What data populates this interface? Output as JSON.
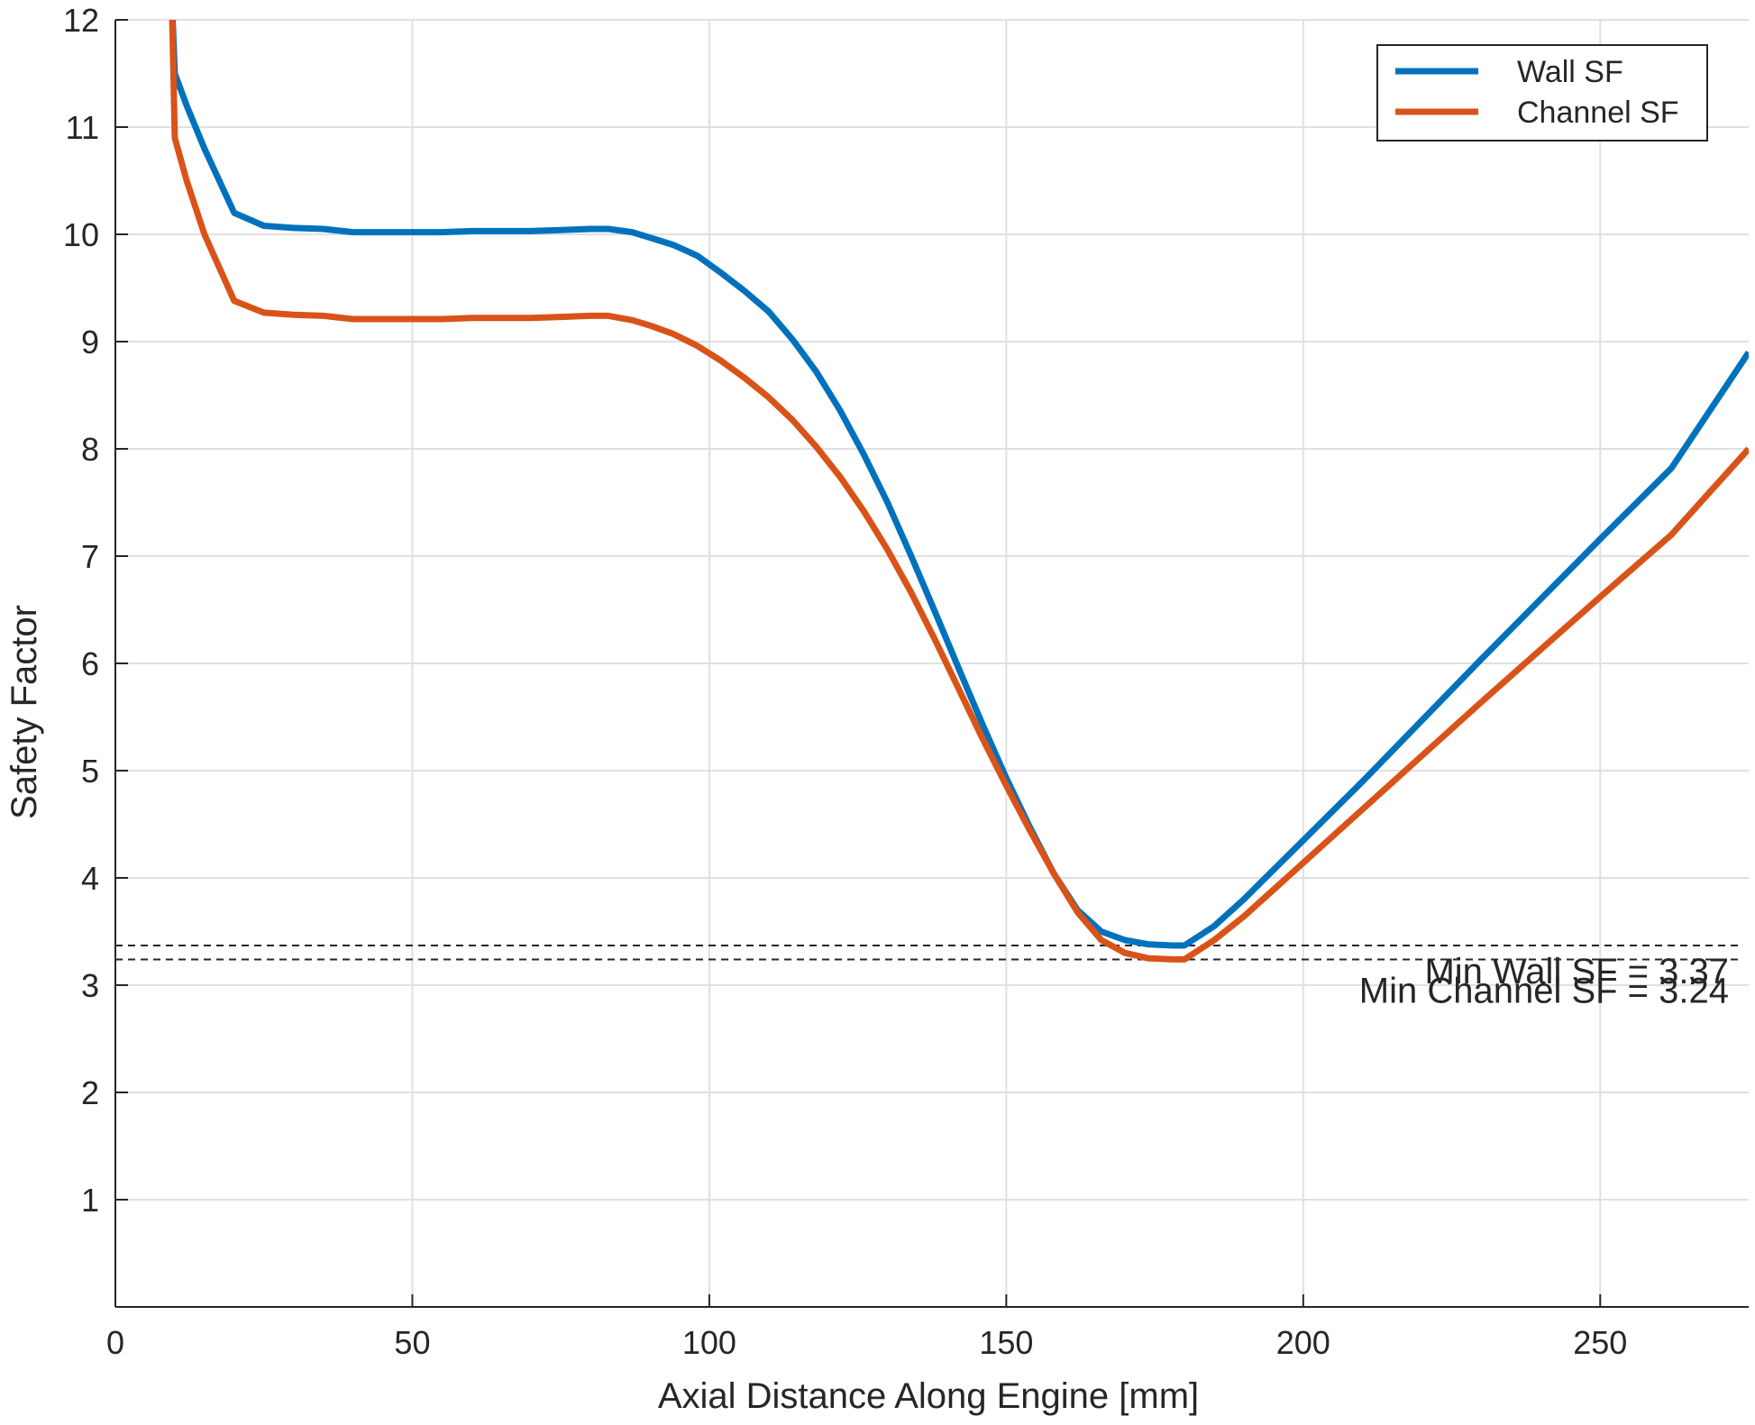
{
  "chart_data": {
    "type": "line",
    "title": "",
    "xlabel": "Axial Distance Along Engine [mm]",
    "ylabel": "Safety Factor",
    "xlim": [
      0,
      275
    ],
    "ylim": [
      0,
      12
    ],
    "xticks": [
      0,
      50,
      100,
      150,
      200,
      250
    ],
    "yticks": [
      1,
      2,
      3,
      4,
      5,
      6,
      7,
      8,
      9,
      10,
      11,
      12
    ],
    "grid": true,
    "legend_position": "top-right",
    "series": [
      {
        "name": "Wall SF",
        "color": "#0072bd",
        "x": [
          9.5,
          10,
          12,
          15,
          20,
          25,
          30,
          35,
          40,
          45,
          50,
          55,
          60,
          65,
          70,
          75,
          80,
          83,
          87,
          90,
          94,
          98,
          102,
          106,
          110,
          114,
          118,
          122,
          126,
          130,
          134,
          138,
          142,
          146,
          150,
          154,
          158,
          162,
          166,
          170,
          174,
          178,
          180,
          185,
          190,
          200,
          210,
          220,
          230,
          240,
          250,
          262,
          275
        ],
        "y": [
          12.2,
          11.5,
          11.2,
          10.8,
          10.2,
          10.08,
          10.06,
          10.05,
          10.02,
          10.02,
          10.02,
          10.02,
          10.03,
          10.03,
          10.03,
          10.04,
          10.05,
          10.05,
          10.02,
          9.97,
          9.9,
          9.8,
          9.64,
          9.47,
          9.28,
          9.02,
          8.72,
          8.36,
          7.95,
          7.5,
          7.0,
          6.48,
          5.95,
          5.43,
          4.93,
          4.47,
          4.04,
          3.7,
          3.5,
          3.42,
          3.38,
          3.37,
          3.37,
          3.55,
          3.8,
          4.35,
          4.9,
          5.47,
          6.04,
          6.6,
          7.16,
          7.82,
          8.9
        ]
      },
      {
        "name": "Channel SF",
        "color": "#d95319",
        "x": [
          9.5,
          10,
          12,
          15,
          20,
          25,
          30,
          35,
          40,
          45,
          50,
          55,
          60,
          65,
          70,
          75,
          80,
          83,
          87,
          90,
          94,
          98,
          102,
          106,
          110,
          114,
          118,
          122,
          126,
          130,
          134,
          138,
          142,
          146,
          150,
          154,
          158,
          162,
          166,
          170,
          174,
          178,
          180,
          185,
          190,
          200,
          210,
          220,
          230,
          240,
          250,
          262,
          275
        ],
        "y": [
          12.2,
          10.9,
          10.5,
          10.0,
          9.38,
          9.27,
          9.25,
          9.24,
          9.21,
          9.21,
          9.21,
          9.21,
          9.22,
          9.22,
          9.22,
          9.23,
          9.24,
          9.24,
          9.2,
          9.15,
          9.07,
          8.96,
          8.82,
          8.66,
          8.48,
          8.27,
          8.02,
          7.74,
          7.42,
          7.06,
          6.66,
          6.22,
          5.76,
          5.3,
          4.86,
          4.44,
          4.04,
          3.68,
          3.42,
          3.3,
          3.25,
          3.24,
          3.24,
          3.42,
          3.64,
          4.14,
          4.64,
          5.14,
          5.64,
          6.13,
          6.62,
          7.2,
          8.0
        ]
      }
    ],
    "reference_lines": [
      {
        "y": 3.37,
        "style": "dashed",
        "color": "#262626",
        "label": "Min Wall SF = 3.37"
      },
      {
        "y": 3.24,
        "style": "dashed",
        "color": "#262626",
        "label": "Min Channel SF = 3.24"
      }
    ]
  }
}
